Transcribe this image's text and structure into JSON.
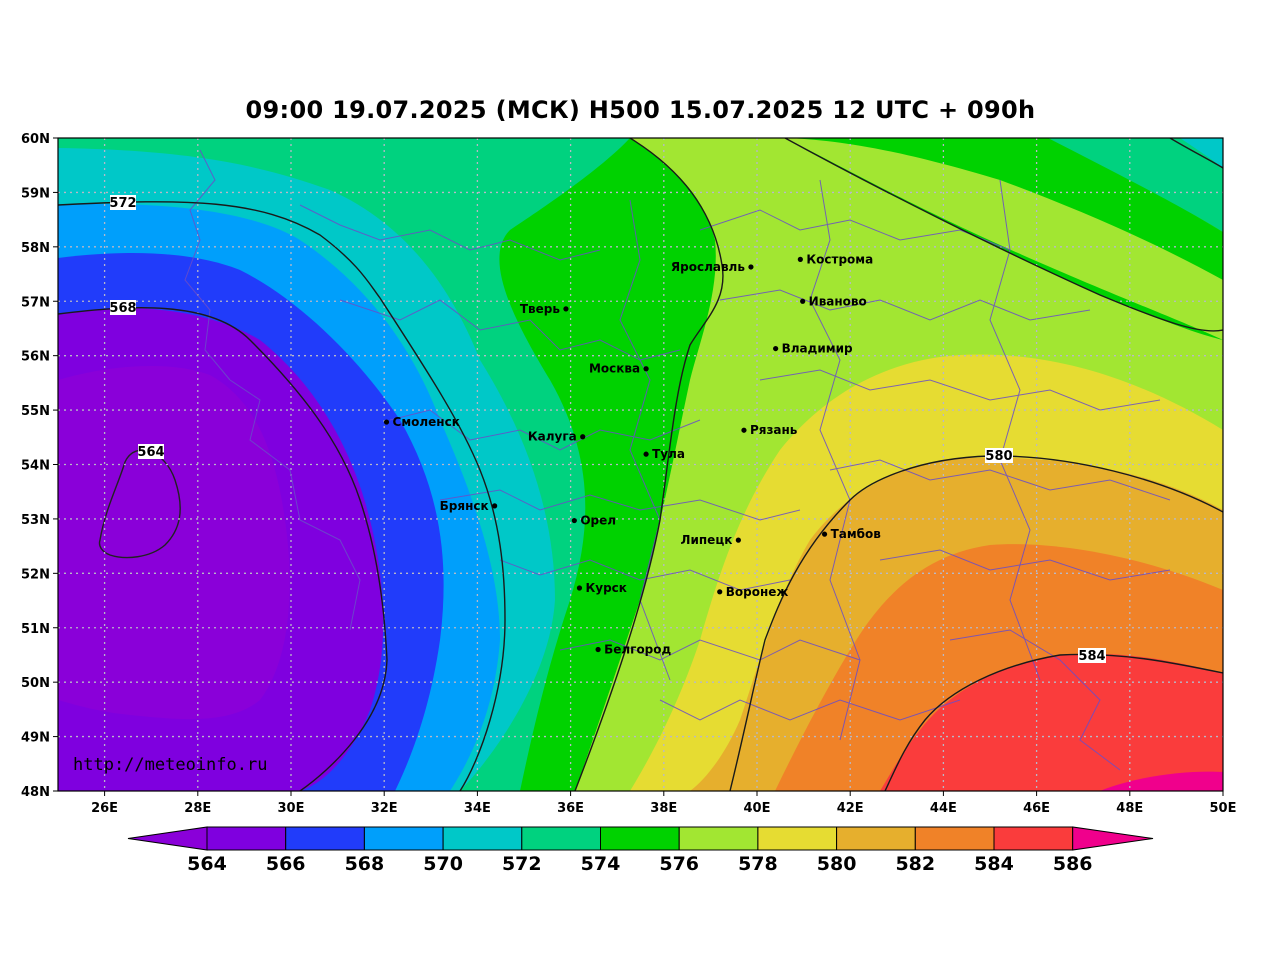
{
  "title": "09:00 19.07.2025 (МСК) H500  15.07.2025 12 UTC + 090h",
  "watermark": "http://meteoinfo.ru",
  "lat_ticks": [
    "60N",
    "59N",
    "58N",
    "57N",
    "56N",
    "55N",
    "54N",
    "53N",
    "52N",
    "51N",
    "50N",
    "49N",
    "48N"
  ],
  "lon_ticks": [
    "26E",
    "28E",
    "30E",
    "32E",
    "34E",
    "36E",
    "38E",
    "40E",
    "42E",
    "44E",
    "46E",
    "48E",
    "50E"
  ],
  "colors": {
    "c562": "#8a00d9",
    "c564": "#7f00df",
    "c566": "#213cfa",
    "c568": "#009ffb",
    "c570": "#00c8c8",
    "c572": "#00d27f",
    "c574": "#00d200",
    "c576": "#a2e632",
    "c578": "#e6dc32",
    "c580": "#e6af2d",
    "c582": "#f08228",
    "c584": "#fa3c3c",
    "c586": "#f0008c"
  },
  "cities": [
    {
      "name": "Кострома",
      "lon": 40.93,
      "lat": 57.77
    },
    {
      "name": "Ярославль",
      "lon": 39.87,
      "lat": 57.63
    },
    {
      "name": "Иваново",
      "lon": 40.98,
      "lat": 57.0
    },
    {
      "name": "Тверь",
      "lon": 35.9,
      "lat": 56.86
    },
    {
      "name": "Владимир",
      "lon": 40.4,
      "lat": 56.13
    },
    {
      "name": "Москва",
      "lon": 37.62,
      "lat": 55.76
    },
    {
      "name": "Смоленск",
      "lon": 32.05,
      "lat": 54.78
    },
    {
      "name": "Рязань",
      "lon": 39.72,
      "lat": 54.63
    },
    {
      "name": "Калуга",
      "lon": 36.26,
      "lat": 54.51
    },
    {
      "name": "Тула",
      "lon": 37.62,
      "lat": 54.19
    },
    {
      "name": "Брянск",
      "lon": 34.37,
      "lat": 53.24
    },
    {
      "name": "Орел",
      "lon": 36.08,
      "lat": 52.97
    },
    {
      "name": "Тамбов",
      "lon": 41.45,
      "lat": 52.72
    },
    {
      "name": "Липецк",
      "lon": 39.6,
      "lat": 52.61
    },
    {
      "name": "Курск",
      "lon": 36.19,
      "lat": 51.73
    },
    {
      "name": "Воронеж",
      "lon": 39.2,
      "lat": 51.66
    },
    {
      "name": "Белгород",
      "lon": 36.59,
      "lat": 50.6
    }
  ],
  "contour_labels": [
    "572",
    "568",
    "564",
    "580",
    "584"
  ],
  "colorbar": {
    "levels": [
      "564",
      "566",
      "568",
      "570",
      "572",
      "574",
      "576",
      "578",
      "580",
      "582",
      "584",
      "586"
    ]
  }
}
